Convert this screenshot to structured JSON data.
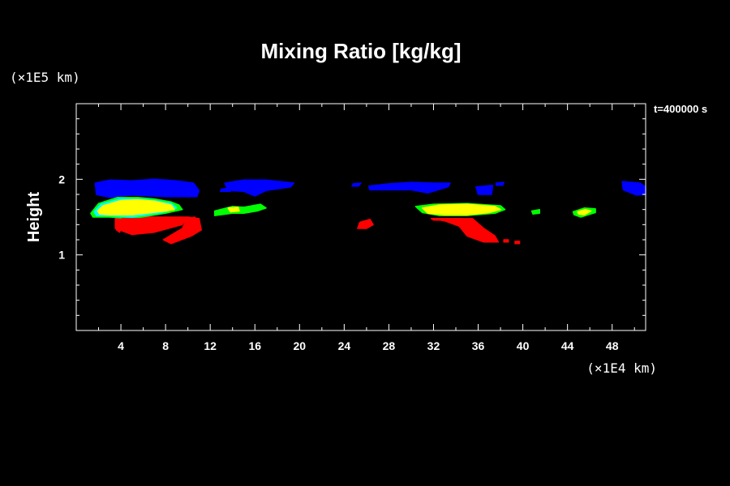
{
  "chart_data": {
    "type": "heatmap",
    "title": "Mixing Ratio [kg/kg]",
    "ylabel": "Height",
    "xunit": "(×1E4 km)",
    "yunit": "(×1E5 km)",
    "time_label": "t=400000 s",
    "xlim": [
      0,
      51
    ],
    "ylim": [
      0,
      3
    ],
    "xticks": [
      4,
      8,
      12,
      16,
      20,
      24,
      28,
      32,
      36,
      40,
      44,
      48
    ],
    "yticks": [
      1,
      2
    ],
    "colors": {
      "blue": "#0000ff",
      "cyan": "#00ffff",
      "green": "#00ff00",
      "yellow": "#ffff00",
      "red": "#ff0000",
      "axis": "#ffffff",
      "background": "#000000"
    },
    "regions": [
      {
        "color": "blue",
        "points": [
          [
            1.7,
            1.95
          ],
          [
            3,
            1.99
          ],
          [
            5,
            1.98
          ],
          [
            7,
            2.0
          ],
          [
            9,
            1.98
          ],
          [
            10.5,
            1.95
          ],
          [
            11,
            1.85
          ],
          [
            10.8,
            1.77
          ],
          [
            8,
            1.77
          ],
          [
            5,
            1.79
          ],
          [
            3,
            1.76
          ],
          [
            1.8,
            1.8
          ]
        ]
      },
      {
        "color": "blue",
        "points": [
          [
            13.3,
            1.95
          ],
          [
            15,
            1.99
          ],
          [
            17,
            1.99
          ],
          [
            19.5,
            1.95
          ],
          [
            19.2,
            1.9
          ],
          [
            17,
            1.85
          ],
          [
            16,
            1.78
          ],
          [
            15,
            1.84
          ],
          [
            13.6,
            1.85
          ]
        ]
      },
      {
        "color": "blue",
        "points": [
          [
            13,
            1.87
          ],
          [
            14,
            1.89
          ],
          [
            13.8,
            1.84
          ],
          [
            12.9,
            1.84
          ]
        ]
      },
      {
        "color": "blue",
        "points": [
          [
            24.8,
            1.94
          ],
          [
            25.5,
            1.95
          ],
          [
            25.3,
            1.91
          ],
          [
            24.7,
            1.91
          ]
        ]
      },
      {
        "color": "blue",
        "points": [
          [
            26.2,
            1.91
          ],
          [
            28,
            1.94
          ],
          [
            30,
            1.96
          ],
          [
            32,
            1.95
          ],
          [
            33.5,
            1.95
          ],
          [
            33.3,
            1.9
          ],
          [
            31.5,
            1.82
          ],
          [
            30,
            1.86
          ],
          [
            28,
            1.86
          ],
          [
            26.3,
            1.86
          ]
        ]
      },
      {
        "color": "blue",
        "points": [
          [
            35.8,
            1.9
          ],
          [
            37.3,
            1.92
          ],
          [
            37.2,
            1.8
          ],
          [
            36,
            1.8
          ]
        ]
      },
      {
        "color": "blue",
        "points": [
          [
            37.6,
            1.95
          ],
          [
            38.3,
            1.96
          ],
          [
            38.2,
            1.92
          ],
          [
            37.6,
            1.92
          ]
        ]
      },
      {
        "color": "blue",
        "points": [
          [
            48.9,
            1.97
          ],
          [
            50.5,
            1.95
          ],
          [
            51,
            1.9
          ],
          [
            51,
            1.8
          ],
          [
            50.2,
            1.79
          ],
          [
            49,
            1.86
          ]
        ]
      },
      {
        "color": "red",
        "points": [
          [
            3.5,
            1.5
          ],
          [
            10,
            1.5
          ],
          [
            9.5,
            1.4
          ],
          [
            7,
            1.3
          ],
          [
            5,
            1.27
          ],
          [
            3.5,
            1.35
          ]
        ]
      },
      {
        "color": "red",
        "points": [
          [
            3.6,
            1.4
          ],
          [
            4,
            1.4
          ],
          [
            3.9,
            1.3
          ],
          [
            3.6,
            1.33
          ]
        ]
      },
      {
        "color": "red",
        "points": [
          [
            10,
            1.5
          ],
          [
            11,
            1.48
          ],
          [
            11.2,
            1.33
          ],
          [
            10.3,
            1.25
          ],
          [
            8.5,
            1.15
          ],
          [
            7.8,
            1.2
          ],
          [
            8.7,
            1.28
          ],
          [
            9.5,
            1.35
          ]
        ]
      },
      {
        "color": "red",
        "points": [
          [
            25.4,
            1.43
          ],
          [
            26.3,
            1.47
          ],
          [
            26.6,
            1.4
          ],
          [
            26,
            1.35
          ],
          [
            25.2,
            1.35
          ]
        ]
      },
      {
        "color": "red",
        "points": [
          [
            31.8,
            1.48
          ],
          [
            35.5,
            1.48
          ],
          [
            36.5,
            1.35
          ],
          [
            37.5,
            1.25
          ],
          [
            37.8,
            1.17
          ],
          [
            36.5,
            1.17
          ],
          [
            35,
            1.25
          ],
          [
            34.3,
            1.38
          ],
          [
            33,
            1.45
          ]
        ]
      },
      {
        "color": "red",
        "points": [
          [
            39.3,
            1.18
          ],
          [
            39.7,
            1.18
          ],
          [
            39.7,
            1.15
          ],
          [
            39.3,
            1.15
          ]
        ]
      },
      {
        "color": "red",
        "points": [
          [
            38.3,
            1.2
          ],
          [
            38.7,
            1.2
          ],
          [
            38.7,
            1.17
          ],
          [
            38.3,
            1.17
          ]
        ]
      },
      {
        "color": "green",
        "points": [
          [
            1.3,
            1.55
          ],
          [
            2,
            1.68
          ],
          [
            3.7,
            1.76
          ],
          [
            5.5,
            1.76
          ],
          [
            7,
            1.74
          ],
          [
            8.5,
            1.7
          ],
          [
            9.2,
            1.66
          ],
          [
            9.5,
            1.6
          ],
          [
            8,
            1.55
          ],
          [
            5,
            1.48
          ],
          [
            3,
            1.5
          ],
          [
            1.5,
            1.5
          ]
        ]
      },
      {
        "color": "cyan",
        "points": [
          [
            1.6,
            1.57
          ],
          [
            2.2,
            1.67
          ],
          [
            3.9,
            1.74
          ],
          [
            5.5,
            1.74
          ],
          [
            7,
            1.72
          ],
          [
            8.5,
            1.68
          ],
          [
            9,
            1.62
          ],
          [
            8,
            1.57
          ],
          [
            5,
            1.5
          ],
          [
            3,
            1.52
          ],
          [
            1.8,
            1.52
          ]
        ]
      },
      {
        "color": "yellow",
        "points": [
          [
            1.9,
            1.58
          ],
          [
            2.4,
            1.65
          ],
          [
            4,
            1.72
          ],
          [
            5.5,
            1.73
          ],
          [
            7,
            1.71
          ],
          [
            8.5,
            1.66
          ],
          [
            8.8,
            1.6
          ],
          [
            8,
            1.58
          ],
          [
            5,
            1.53
          ],
          [
            3,
            1.53
          ],
          [
            2.1,
            1.54
          ]
        ]
      },
      {
        "color": "red",
        "points": [
          [
            4.1,
            1.48
          ],
          [
            7.8,
            1.48
          ],
          [
            7.8,
            1.45
          ],
          [
            4.1,
            1.45
          ]
        ]
      },
      {
        "color": "green",
        "points": [
          [
            12.4,
            1.58
          ],
          [
            14,
            1.64
          ],
          [
            15,
            1.63
          ],
          [
            16.5,
            1.67
          ],
          [
            17,
            1.62
          ],
          [
            16.2,
            1.58
          ],
          [
            15,
            1.55
          ],
          [
            14,
            1.55
          ],
          [
            12.4,
            1.52
          ]
        ]
      },
      {
        "color": "yellow",
        "points": [
          [
            13.6,
            1.62
          ],
          [
            14.5,
            1.63
          ],
          [
            14.6,
            1.58
          ],
          [
            13.8,
            1.57
          ]
        ]
      },
      {
        "color": "red",
        "points": [
          [
            10,
            1.48
          ],
          [
            10.6,
            1.5
          ],
          [
            10.9,
            1.45
          ],
          [
            10.3,
            1.44
          ]
        ]
      },
      {
        "color": "green",
        "points": [
          [
            30.4,
            1.64
          ],
          [
            32,
            1.67
          ],
          [
            35,
            1.68
          ],
          [
            38,
            1.65
          ],
          [
            38.4,
            1.6
          ],
          [
            37.5,
            1.55
          ],
          [
            35,
            1.52
          ],
          [
            32.5,
            1.52
          ],
          [
            31,
            1.56
          ]
        ]
      },
      {
        "color": "yellow",
        "points": [
          [
            31,
            1.62
          ],
          [
            32.5,
            1.66
          ],
          [
            35,
            1.67
          ],
          [
            37.5,
            1.64
          ],
          [
            38,
            1.6
          ],
          [
            37,
            1.56
          ],
          [
            35,
            1.53
          ],
          [
            33,
            1.53
          ],
          [
            31.5,
            1.55
          ]
        ]
      },
      {
        "color": "red",
        "points": [
          [
            31.8,
            1.48
          ],
          [
            34.5,
            1.48
          ],
          [
            34,
            1.46
          ],
          [
            32,
            1.46
          ]
        ]
      },
      {
        "color": "green",
        "points": [
          [
            40.8,
            1.58
          ],
          [
            41.5,
            1.6
          ],
          [
            41.5,
            1.55
          ],
          [
            40.9,
            1.54
          ]
        ]
      },
      {
        "color": "green",
        "points": [
          [
            44.5,
            1.57
          ],
          [
            45.5,
            1.62
          ],
          [
            46.5,
            1.61
          ],
          [
            46.5,
            1.56
          ],
          [
            45.2,
            1.5
          ],
          [
            44.6,
            1.53
          ]
        ]
      },
      {
        "color": "yellow",
        "points": [
          [
            44.9,
            1.57
          ],
          [
            45.6,
            1.6
          ],
          [
            46.1,
            1.58
          ],
          [
            45.5,
            1.53
          ],
          [
            45,
            1.54
          ]
        ]
      }
    ]
  }
}
